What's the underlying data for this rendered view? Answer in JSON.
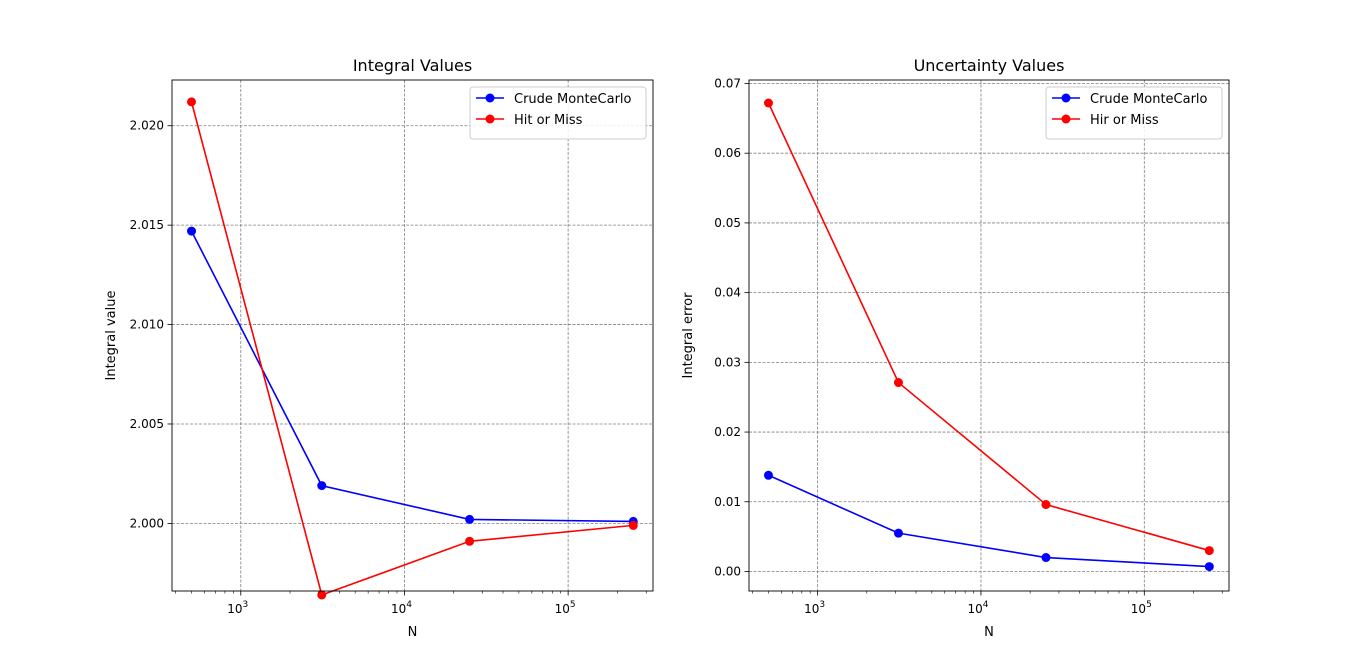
{
  "chart_data": [
    {
      "type": "line",
      "title": "Integral Values",
      "xlabel": "N",
      "ylabel": "Integral value",
      "xscale": "log",
      "x": [
        500,
        3125,
        25000,
        250000
      ],
      "xlim": [
        380,
        330000
      ],
      "ylim": [
        1.9966,
        2.0223
      ],
      "xticks": [
        1000,
        10000,
        100000
      ],
      "xtick_labels": [
        {
          "base": "10",
          "exp": "3"
        },
        {
          "base": "10",
          "exp": "4"
        },
        {
          "base": "10",
          "exp": "5"
        }
      ],
      "yticks": [
        2.0,
        2.005,
        2.01,
        2.015,
        2.02
      ],
      "ytick_labels": [
        "2.000",
        "2.005",
        "2.010",
        "2.015",
        "2.020"
      ],
      "grid": true,
      "legend_position": "top-right",
      "series": [
        {
          "name": "Crude MonteCarlo",
          "color": "#0000ff",
          "values": [
            2.0147,
            2.0019,
            2.0002,
            2.0001
          ]
        },
        {
          "name": "Hit or Miss",
          "color": "#ff0000",
          "values": [
            2.0212,
            1.9964,
            1.9991,
            1.9999
          ]
        }
      ]
    },
    {
      "type": "line",
      "title": "Uncertainty Values",
      "xlabel": "N",
      "ylabel": "Integral error",
      "xscale": "log",
      "x": [
        500,
        3125,
        25000,
        250000
      ],
      "xlim": [
        380,
        330000
      ],
      "ylim": [
        -0.0028,
        0.0705
      ],
      "xticks": [
        1000,
        10000,
        100000
      ],
      "xtick_labels": [
        {
          "base": "10",
          "exp": "3"
        },
        {
          "base": "10",
          "exp": "4"
        },
        {
          "base": "10",
          "exp": "5"
        }
      ],
      "yticks": [
        0.0,
        0.01,
        0.02,
        0.03,
        0.04,
        0.05,
        0.06,
        0.07
      ],
      "ytick_labels": [
        "0.00",
        "0.01",
        "0.02",
        "0.03",
        "0.04",
        "0.05",
        "0.06",
        "0.07"
      ],
      "grid": true,
      "legend_position": "top-right",
      "series": [
        {
          "name": "Crude MonteCarlo",
          "color": "#0000ff",
          "values": [
            0.0138,
            0.0055,
            0.002,
            0.0007
          ]
        },
        {
          "name": "Hir or Miss",
          "color": "#ff0000",
          "values": [
            0.0672,
            0.0271,
            0.0096,
            0.003
          ]
        }
      ]
    }
  ]
}
